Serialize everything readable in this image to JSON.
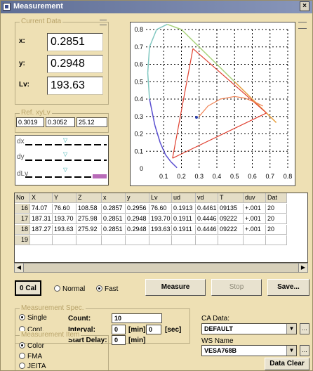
{
  "window": {
    "title": "Measurement",
    "close_label": "×"
  },
  "current_data": {
    "group_label": "Current Data",
    "x_label": "x:",
    "x_value": "0.2851",
    "y_label": "y:",
    "y_value": "0.2948",
    "lv_label": "Lv:",
    "lv_value": "193.63"
  },
  "ref": {
    "group_label": "Ref. xyLv",
    "x": "0.3019",
    "y": "0.3052",
    "lv": "25.12"
  },
  "deltas": {
    "dx_label": "dx",
    "dy_label": "dy",
    "dlv_label": "dLv"
  },
  "chart_data": {
    "type": "scatter",
    "title": "",
    "xlim": [
      0,
      0.8
    ],
    "ylim": [
      0,
      0.8
    ],
    "x_ticks": [
      "0.1",
      "0.2",
      "0.3",
      "0.4",
      "0.5",
      "0.6",
      "0.7",
      "0.8"
    ],
    "y_ticks": [
      "0.8",
      "0.7",
      "0.6",
      "0.5",
      "0.4",
      "0.3",
      "0.2",
      "0.1"
    ],
    "origin_label": "0",
    "grid": true,
    "spectral_locus": [
      [
        0.175,
        0.005
      ],
      [
        0.16,
        0.02
      ],
      [
        0.14,
        0.04
      ],
      [
        0.11,
        0.08
      ],
      [
        0.08,
        0.15
      ],
      [
        0.05,
        0.25
      ],
      [
        0.02,
        0.4
      ],
      [
        0.01,
        0.55
      ],
      [
        0.02,
        0.7
      ],
      [
        0.06,
        0.8
      ],
      [
        0.12,
        0.83
      ],
      [
        0.2,
        0.8
      ],
      [
        0.3,
        0.7
      ],
      [
        0.4,
        0.6
      ],
      [
        0.5,
        0.5
      ],
      [
        0.6,
        0.4
      ],
      [
        0.68,
        0.32
      ],
      [
        0.735,
        0.265
      ]
    ],
    "gamut_triangle": [
      [
        0.68,
        0.32
      ],
      [
        0.265,
        0.69
      ],
      [
        0.15,
        0.06
      ]
    ],
    "planckian_locus": [
      [
        0.3,
        0.3
      ],
      [
        0.35,
        0.36
      ],
      [
        0.42,
        0.4
      ],
      [
        0.5,
        0.415
      ],
      [
        0.56,
        0.405
      ],
      [
        0.62,
        0.38
      ],
      [
        0.66,
        0.36
      ]
    ],
    "measured_point": [
      0.2851,
      0.2948
    ]
  },
  "table": {
    "headers": [
      "No",
      "X",
      "Y",
      "Z",
      "x",
      "y",
      "Lv",
      "ud",
      "vd",
      "T",
      "duv",
      "Dat"
    ],
    "rows": [
      [
        "16",
        "74.07",
        "76.60",
        "108.58",
        "0.2857",
        "0.2956",
        "76.60",
        "0.1913",
        "0.4461",
        "09135",
        "+.001",
        "20"
      ],
      [
        "17",
        "187.31",
        "193.70",
        "275.98",
        "0.2851",
        "0.2948",
        "193.70",
        "0.1911",
        "0.4446",
        "09222",
        "+.001",
        "20"
      ],
      [
        "18",
        "187.27",
        "193.63",
        "275.92",
        "0.2851",
        "0.2948",
        "193.63",
        "0.1911",
        "0.4446",
        "09222",
        "+.001",
        "20"
      ],
      [
        "19",
        "",
        "",
        "",
        "",
        "",
        "",
        "",
        "",
        "",
        "",
        ""
      ]
    ]
  },
  "controls": {
    "zero_cal_label": "0 Cal",
    "mode_normal": "Normal",
    "mode_fast": "Fast",
    "measure_label": "Measure",
    "stop_label": "Stop",
    "save_label": "Save..."
  },
  "spec": {
    "group_label": "Measurement Spec.",
    "single_label": "Single",
    "cont_label": "Cont.",
    "count_label": "Count:",
    "count_value": "10",
    "interval_label": "Interval:",
    "interval_min": "0",
    "interval_min_unit": "[min]",
    "interval_sec": "0",
    "interval_sec_unit": "[sec]",
    "start_delay_label": "Start Delay:",
    "start_delay_value": "0",
    "start_delay_unit": "[min]"
  },
  "item": {
    "group_label": "Measurement Item",
    "color": "Color",
    "fma": "FMA",
    "jeita": "JEITA"
  },
  "ca": {
    "ca_data_label": "CA Data:",
    "ca_data_value": "DEFAULT",
    "ws_name_label": "WS Name",
    "ws_name_value": "VESA768B",
    "data_clear_label": "Data Clear",
    "ellipsis": "..."
  },
  "colors": {
    "accent_title": "#5F6E95",
    "locus_blue": "#5A4FD0",
    "locus_red": "#E04030",
    "locus_green": "#8AC060"
  }
}
